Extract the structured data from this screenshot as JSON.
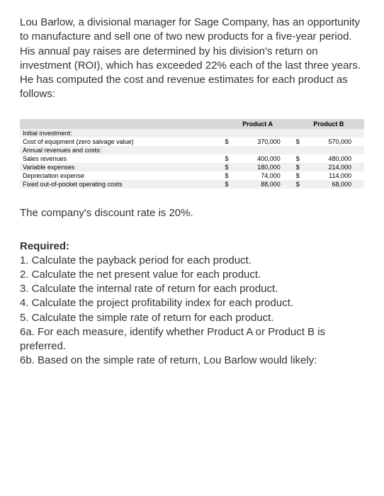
{
  "intro": "Lou Barlow, a divisional manager for Sage Company, has an opportunity to manufacture and sell one of two new products for a five-year period. His annual pay raises are determined by his division's return on investment (ROI), which has exceeded 22% each of the last three years. He has computed the cost and revenue estimates for each product as follows:",
  "table": {
    "headers": {
      "a": "Product A",
      "b": "Product B"
    },
    "rows": [
      {
        "label": "Initial investment:",
        "a": "",
        "b": "",
        "shaded": true
      },
      {
        "label": "Cost of equipment (zero salvage value)",
        "a": "370,000",
        "b": "570,000"
      },
      {
        "label": "Annual revenues and costs:",
        "a": "",
        "b": "",
        "shaded": true
      },
      {
        "label": "Sales revenues",
        "a": "400,000",
        "b": "480,000"
      },
      {
        "label": "Variable expenses",
        "a": "180,000",
        "b": "214,000",
        "shaded": true
      },
      {
        "label": "Depreciation expense",
        "a": "74,000",
        "b": "114,000"
      },
      {
        "label": "Fixed out-of-pocket operating costs",
        "a": "88,000",
        "b": "68,000",
        "shaded": true
      }
    ]
  },
  "discount": "The company's discount rate is 20%.",
  "required": {
    "heading": "Required:",
    "items": [
      "1. Calculate the payback period for each product.",
      "2. Calculate the net present value for each product.",
      "3. Calculate the internal rate of return for each product.",
      "4. Calculate the project profitability index for each product.",
      "5. Calculate the simple rate of return for each product.",
      "6a. For each measure, identify whether Product A or Product B is preferred.",
      "6b. Based on the simple rate of return, Lou Barlow would likely:"
    ]
  }
}
